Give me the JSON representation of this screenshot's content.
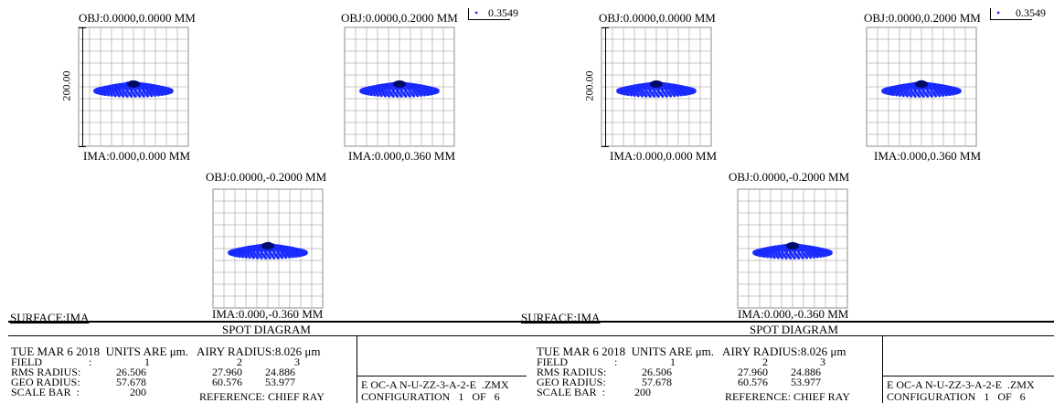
{
  "accent_color": "#1a2bff",
  "panels": [
    {
      "obj": "OBJ:0.0000,0.0000 MM",
      "ima": "IMA:0.000,0.000 MM",
      "scale_bar_value": "200.00",
      "spots": [
        {
          "id": "tl-obj-0-0",
          "grid": [
            86,
            30
          ],
          "objT": [
            85,
            13
          ],
          "imaT": [
            91,
            164
          ],
          "scale": true
        },
        {
          "id": "tr-obj-0-0",
          "grid": [
            658,
            30
          ],
          "objT": [
            655,
            13
          ],
          "imaT": [
            667,
            164
          ],
          "scale": true
        }
      ]
    },
    {
      "obj": "OBJ:0.0000,0.2000 MM",
      "ima": "IMA:0.000,0.360 MM",
      "spots": [
        {
          "id": "tl-obj-0-2",
          "grid": [
            377,
            30
          ],
          "objT": [
            373,
            13
          ],
          "imaT": [
            381,
            164
          ],
          "scale": false
        },
        {
          "id": "tr-obj-0-2",
          "grid": [
            948,
            30
          ],
          "objT": [
            945,
            13
          ],
          "imaT": [
            956,
            164
          ],
          "scale": false
        }
      ]
    },
    {
      "obj": "OBJ:0.0000,-0.2000 MM",
      "ima": "IMA:0.000,-0.360 MM",
      "spots": [
        {
          "id": "bl-obj-m0-2",
          "grid": [
            233,
            207
          ],
          "objT": [
            225,
            187
          ],
          "imaT": [
            232,
            337
          ],
          "scale": false
        },
        {
          "id": "br-obj-m0-2",
          "grid": [
            807,
            207
          ],
          "objT": [
            797,
            187
          ],
          "imaT": [
            807,
            337
          ],
          "scale": false
        }
      ]
    }
  ],
  "legend": {
    "value": "0.3549"
  },
  "surface_label": "SURFACE:IMA",
  "title": "SPOT DIAGRAM",
  "info": {
    "date_line": "TUE MAR 6 2018  UNITS ARE μm.   AIRY RADIUS:8.026 μm",
    "field_label": "FIELD",
    "field_colon": ":",
    "fields": [
      "1",
      "2",
      "3"
    ],
    "rms_label": "RMS RADIUS:",
    "rms": [
      "26.506",
      "27.960",
      "24.886"
    ],
    "geo_label": "GEO RADIUS:",
    "geo": [
      "57.678",
      "60.576",
      "53.977"
    ],
    "scale_label": "SCALE BAR  :",
    "scale_value": "200",
    "reference": "REFERENCE: CHIEF RAY",
    "file": "E OC-A N-U-ZZ-3-A-2-E  .ZMX",
    "configuration": "CONFIGURATION   1   OF   6"
  }
}
